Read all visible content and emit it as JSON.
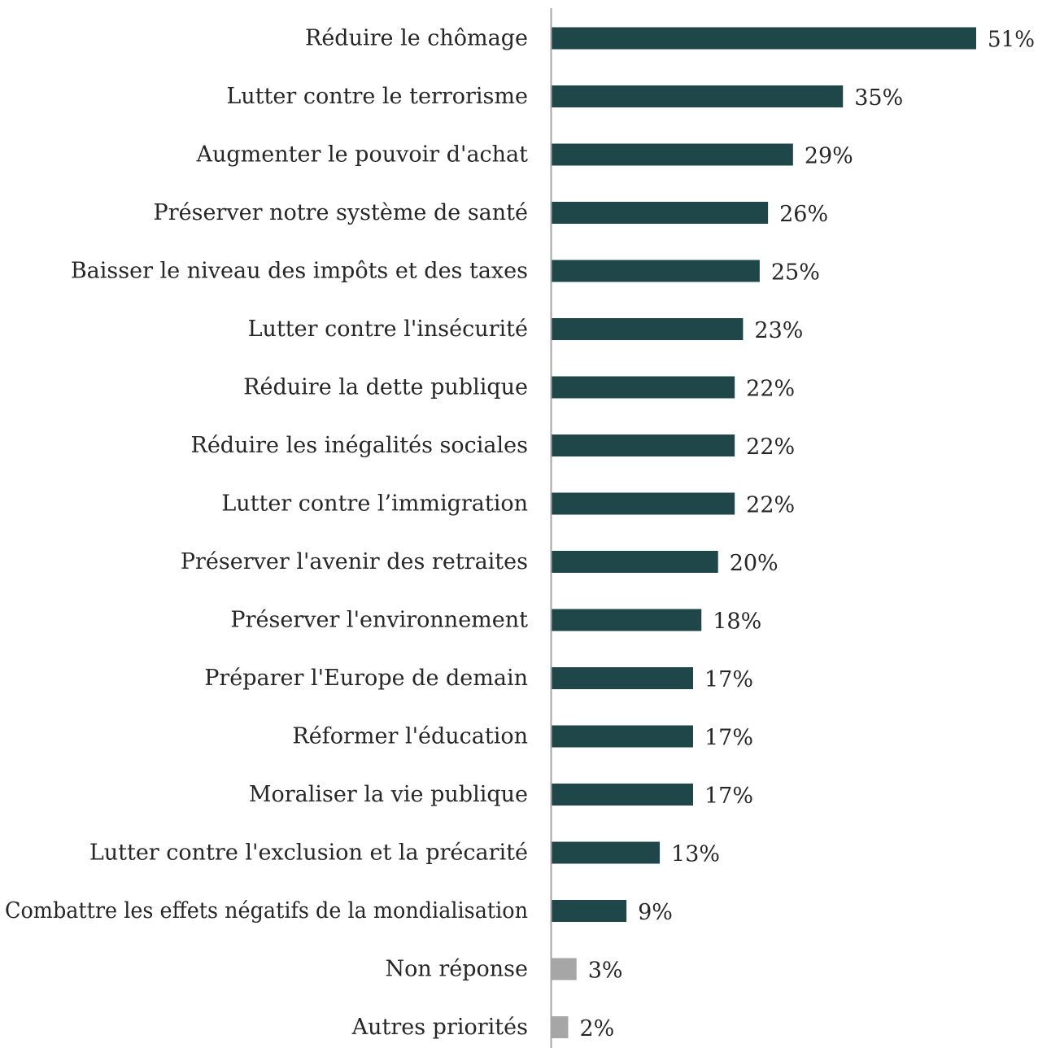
{
  "chart_data": {
    "type": "bar",
    "orientation": "horizontal",
    "title": "",
    "xlabel": "",
    "ylabel": "",
    "categories": [
      "Réduire le chômage",
      "Lutter contre le terrorisme",
      "Augmenter le pouvoir d'achat",
      "Préserver notre système de santé",
      "Baisser le niveau des impôts et des taxes",
      "Lutter contre l'insécurité",
      "Réduire la dette publique",
      "Réduire les inégalités sociales",
      "Lutter contre l’immigration",
      "Préserver l'avenir des retraites",
      "Préserver l'environnement",
      "Préparer l'Europe de demain",
      "Réformer l'éducation",
      "Moraliser la vie publique",
      "Lutter contre l'exclusion et la précarité",
      "Combattre les effets négatifs de la mondialisation",
      "Non réponse",
      "Autres priorités"
    ],
    "values": [
      51,
      35,
      29,
      26,
      25,
      23,
      22,
      22,
      22,
      20,
      18,
      17,
      17,
      17,
      13,
      9,
      3,
      2
    ],
    "value_labels": [
      "51%",
      "35%",
      "29%",
      "26%",
      "25%",
      "23%",
      "22%",
      "22%",
      "22%",
      "20%",
      "18%",
      "17%",
      "17%",
      "17%",
      "13%",
      "9%",
      "3%",
      "2%"
    ],
    "bar_colors": [
      "#1f4649",
      "#1f4649",
      "#1f4649",
      "#1f4649",
      "#1f4649",
      "#1f4649",
      "#1f4649",
      "#1f4649",
      "#1f4649",
      "#1f4649",
      "#1f4649",
      "#1f4649",
      "#1f4649",
      "#1f4649",
      "#1f4649",
      "#1f4649",
      "#a6a6a6",
      "#a6a6a6"
    ],
    "axis_color": "#a6a6a6",
    "grid": false,
    "legend": "none",
    "xlim": [
      0,
      51
    ]
  }
}
